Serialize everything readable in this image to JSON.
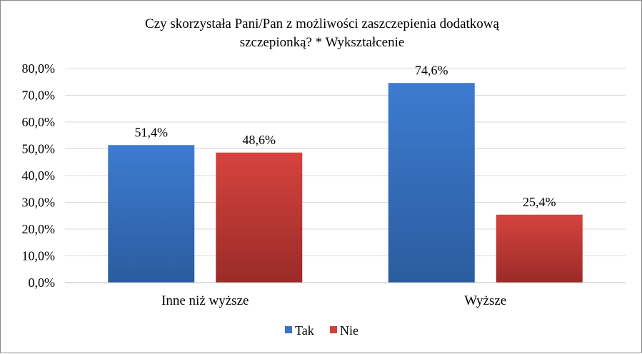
{
  "chart_data": {
    "type": "bar",
    "title_lines": [
      "Czy skorzystała Pani/Pan z możliwości zaszczepienia  dodatkową",
      "szczepionką? * Wykształcenie"
    ],
    "categories": [
      "Inne niż wyższe",
      "Wyższe"
    ],
    "series": [
      {
        "name": "Tak",
        "values": [
          51.4,
          74.6
        ],
        "labels": [
          "51,4%",
          "74,6%"
        ],
        "color": "#3a73c4",
        "color_dark": "#2a5a9e"
      },
      {
        "name": "Nie",
        "values": [
          48.6,
          25.4
        ],
        "labels": [
          "48,6%",
          "25,4%"
        ],
        "color": "#d0403c",
        "color_dark": "#9c2a28"
      }
    ],
    "ylim": [
      0,
      80
    ],
    "yticks": [
      0,
      10,
      20,
      30,
      40,
      50,
      60,
      70,
      80
    ],
    "ytick_labels": [
      "0,0%",
      "10,0%",
      "20,0%",
      "30,0%",
      "40,0%",
      "50,0%",
      "60,0%",
      "70,0%",
      "80,0%"
    ],
    "grid": true,
    "legend_position": "bottom"
  }
}
